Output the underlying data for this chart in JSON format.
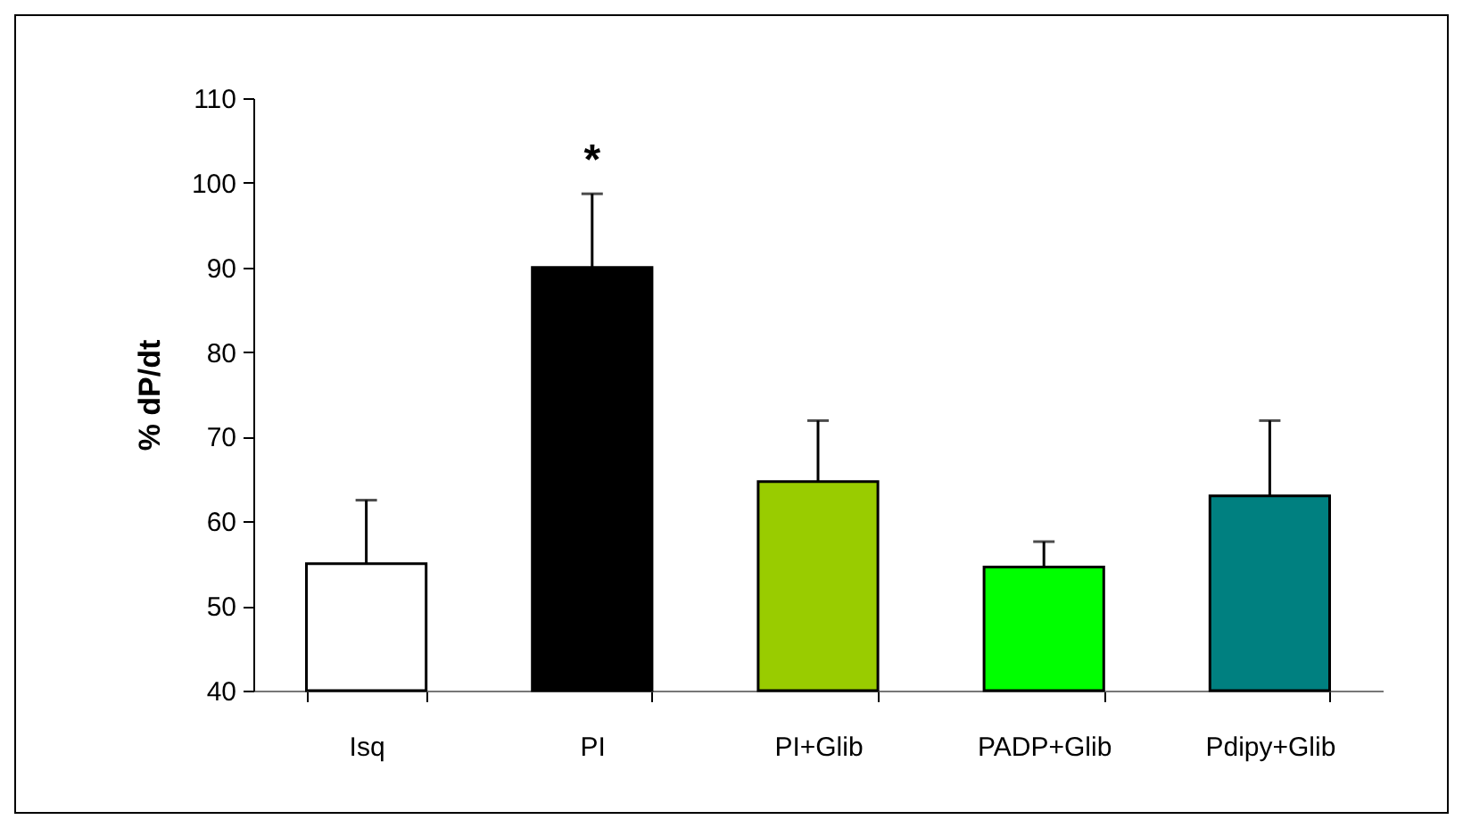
{
  "chart_data": {
    "type": "bar",
    "ylabel": "% dP/dt",
    "categories": [
      "Isq",
      "PI",
      "PI+Glib",
      "PADP+Glib",
      "Pdipy+Glib"
    ],
    "values": [
      55,
      90,
      64.7,
      54.6,
      63
    ],
    "errors": [
      7.5,
      8.7,
      7.2,
      3,
      8.9
    ],
    "colors": [
      "#ffffff",
      "#000000",
      "#99cc00",
      "#00ff00",
      "#008080"
    ],
    "ylim": [
      40,
      110
    ],
    "yticks": [
      40,
      50,
      60,
      70,
      80,
      90,
      100,
      110
    ],
    "annotations": [
      "*"
    ],
    "grid": false
  }
}
